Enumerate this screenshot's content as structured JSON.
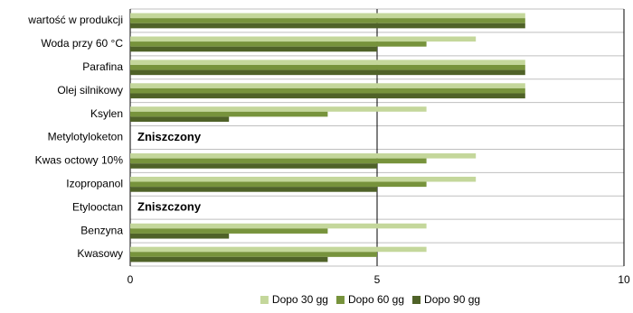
{
  "chart_data": {
    "type": "barh",
    "categories": [
      "wartość w produkcji",
      "Woda przy 60 °C",
      "Parafina",
      "Olej silnikowy",
      "Ksylen",
      "Metylotyloketon",
      "Kwas octowy 10%",
      "Izopropanol",
      "Etylooctan",
      "Benzyna",
      "Kwasowy"
    ],
    "series": [
      {
        "name": "Dopo 30 gg",
        "color": "#c4d79b",
        "values": [
          8,
          7,
          8,
          8,
          6,
          null,
          7,
          7,
          null,
          6,
          6
        ]
      },
      {
        "name": "Dopo 60 gg",
        "color": "#77933c",
        "values": [
          8,
          6,
          8,
          8,
          4,
          null,
          6,
          6,
          null,
          4,
          5
        ]
      },
      {
        "name": "Dopo 90 gg",
        "color": "#4f6228",
        "values": [
          8,
          5,
          8,
          8,
          2,
          null,
          5,
          5,
          null,
          2,
          4
        ]
      }
    ],
    "annotations": [
      {
        "category": "Metylotyloketon",
        "text": "Zniszczony"
      },
      {
        "category": "Etylooctan",
        "text": "Zniszczony"
      }
    ],
    "xlim": [
      0,
      10
    ],
    "xticks": [
      0,
      5,
      10
    ],
    "grid": true,
    "legend": "bottom"
  }
}
